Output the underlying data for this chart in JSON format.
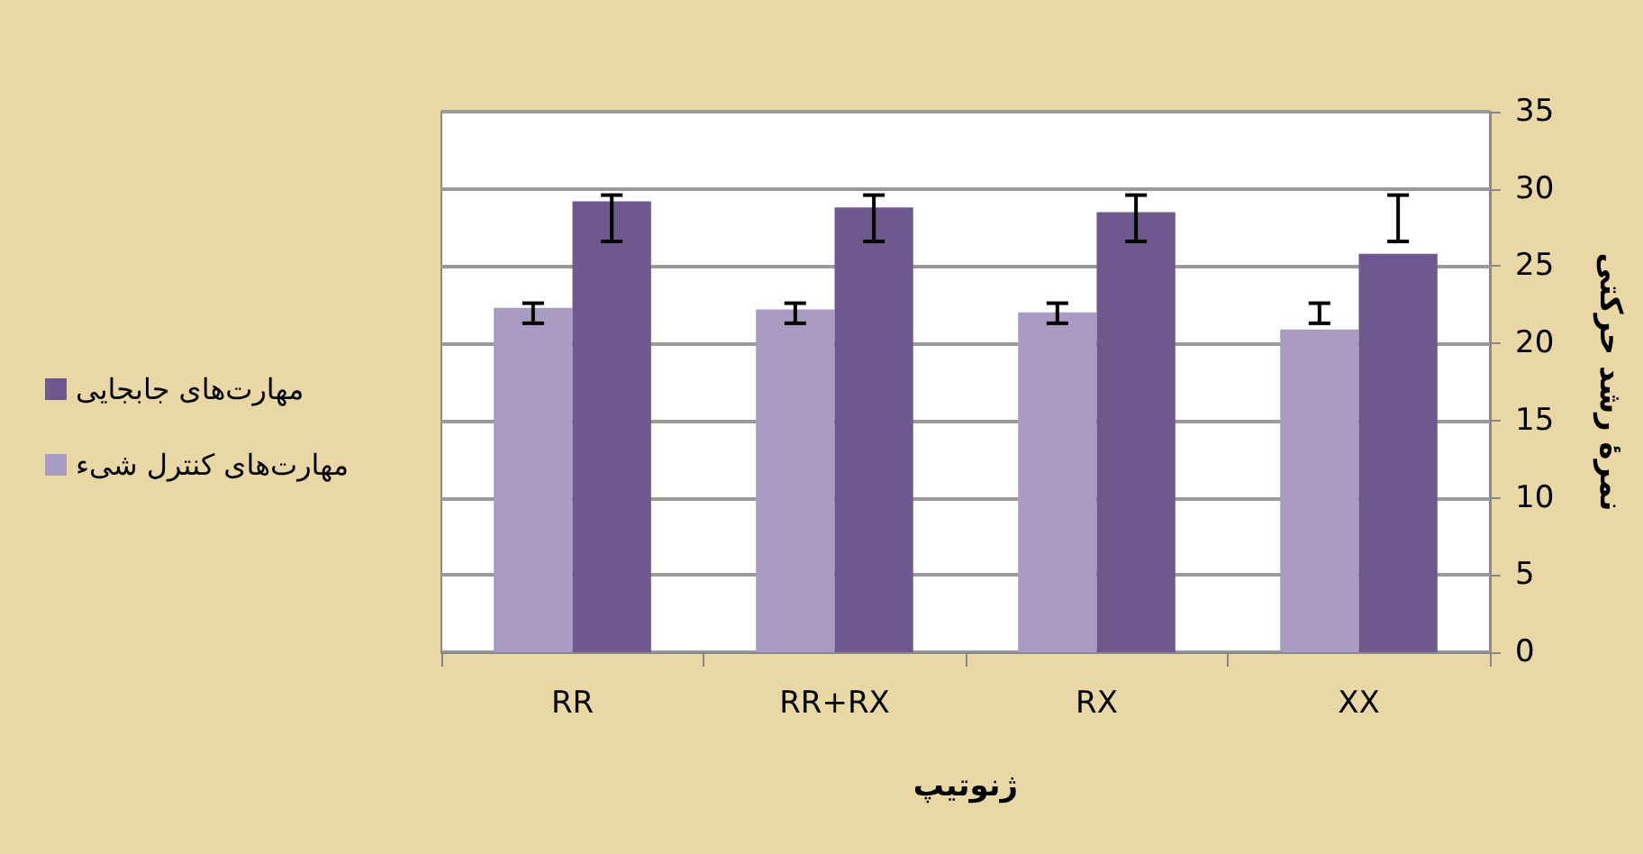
{
  "chart_data": {
    "type": "bar",
    "xlabel": "ژنوتیپ",
    "ylabel": "نمرهٔ رشد حرکتی",
    "categories": [
      "RR",
      "RR+RX",
      "RX",
      "XX"
    ],
    "series": [
      {
        "name": "مهارت‌های کنترل شیء",
        "color": "#a99bc1",
        "values": [
          22.3,
          22.2,
          22.0,
          20.9
        ],
        "errors": [
          [
            21.3,
            22.6
          ],
          [
            21.3,
            22.6
          ],
          [
            21.3,
            22.6
          ],
          [
            21.3,
            22.6
          ]
        ]
      },
      {
        "name": "مهارت‌های جابجایی",
        "color": "#6f588e",
        "values": [
          29.2,
          28.8,
          28.5,
          25.8
        ],
        "errors": [
          [
            26.6,
            29.6
          ],
          [
            26.6,
            29.6
          ],
          [
            26.6,
            29.6
          ],
          [
            26.6,
            29.6
          ]
        ]
      }
    ],
    "ylim": [
      0,
      35
    ],
    "yticks": [
      0,
      5,
      10,
      15,
      20,
      25,
      30,
      35
    ],
    "grid": "y",
    "legend": "left"
  }
}
